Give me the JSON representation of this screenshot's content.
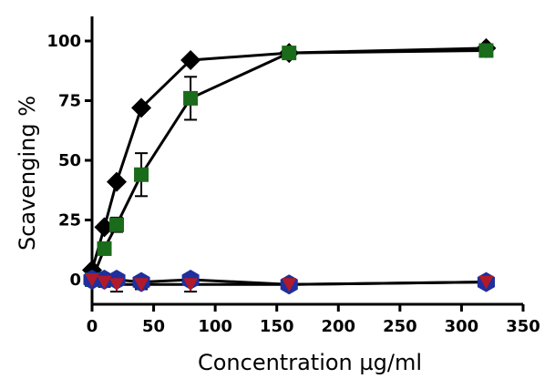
{
  "chart_data": {
    "type": "line",
    "title": "",
    "xlabel": "Concentration µg/ml",
    "ylabel": "Scavenging %",
    "xlim": [
      0,
      350
    ],
    "ylim": [
      -5,
      105
    ],
    "xticks": [
      0,
      50,
      100,
      150,
      200,
      250,
      300,
      350
    ],
    "yticks": [
      0,
      25,
      50,
      75,
      100
    ],
    "x_tick_labels": [
      "0",
      "50",
      "100",
      "150",
      "200",
      "250",
      "300",
      "350"
    ],
    "y_tick_labels": [
      "0",
      "25",
      "50",
      "75",
      "100"
    ],
    "grid": false,
    "legend": "none",
    "series": [
      {
        "marker": "diamond",
        "color": "#000000",
        "x": [
          0,
          10,
          20,
          40,
          80,
          160,
          320
        ],
        "y": [
          4,
          22,
          41,
          72,
          92,
          95,
          97
        ],
        "err": [
          0,
          0,
          0,
          0,
          0,
          0,
          0
        ]
      },
      {
        "marker": "square",
        "color": "#1a6b1a",
        "x": [
          0,
          10,
          20,
          40,
          80,
          160,
          320
        ],
        "y": [
          0,
          13,
          23,
          44,
          76,
          95,
          96
        ],
        "err": [
          0,
          2,
          3,
          9,
          9,
          2,
          1
        ]
      },
      {
        "marker": "hexagon",
        "color": "#1f2f9e",
        "x": [
          0,
          10,
          20,
          40,
          80,
          160,
          320
        ],
        "y": [
          0,
          0,
          0,
          -1,
          0,
          -2,
          -1
        ],
        "err": [
          0,
          0,
          0,
          0,
          0,
          0,
          0
        ]
      },
      {
        "marker": "triangle-down",
        "color": "#b01a2a",
        "x": [
          0,
          10,
          20,
          40,
          80,
          160,
          320
        ],
        "y": [
          0,
          -1,
          -2,
          -2,
          -2,
          -2,
          -1
        ],
        "err": [
          0,
          2,
          3,
          2,
          3,
          1,
          0
        ]
      }
    ]
  }
}
